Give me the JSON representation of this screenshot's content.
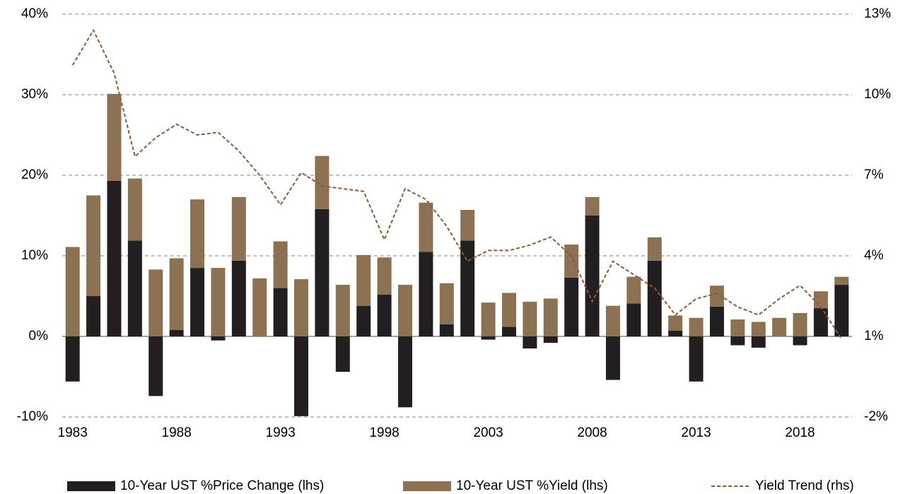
{
  "chart_data": {
    "type": "bar",
    "stacked": true,
    "categories": [
      "1983",
      null,
      null,
      null,
      null,
      "1988",
      null,
      null,
      null,
      null,
      "1993",
      null,
      null,
      null,
      null,
      "1998",
      null,
      null,
      null,
      null,
      "2003",
      null,
      null,
      null,
      null,
      "2008",
      null,
      null,
      null,
      null,
      "2013",
      null,
      null,
      null,
      null,
      "2018",
      null,
      null
    ],
    "series": [
      {
        "name": "10-Year UST %Price Change (lhs)",
        "color": "#231f20",
        "values": [
          -5.6,
          5.0,
          19.3,
          11.9,
          -7.4,
          0.8,
          8.5,
          -0.5,
          9.4,
          0,
          6.0,
          -9.9,
          15.8,
          -4.4,
          3.8,
          5.2,
          -8.8,
          10.5,
          1.5,
          11.9,
          -0.4,
          1.2,
          -1.5,
          -0.8,
          7.3,
          15.0,
          -5.4,
          4.1,
          9.4,
          0.7,
          -5.6,
          3.7,
          -1.1,
          -1.4,
          0,
          -1.1,
          3.5,
          6.4
        ]
      },
      {
        "name": "10-Year UST %Yield (lhs)",
        "color": "#8c7152",
        "values": [
          11.1,
          12.5,
          10.8,
          7.7,
          8.3,
          8.9,
          8.5,
          8.5,
          7.9,
          7.2,
          5.8,
          7.1,
          6.6,
          6.4,
          6.3,
          4.6,
          6.4,
          6.1,
          5.1,
          3.8,
          4.2,
          4.2,
          4.3,
          4.7,
          4.1,
          2.3,
          3.8,
          3.3,
          2.9,
          1.9,
          2.3,
          2.6,
          2.1,
          1.8,
          2.3,
          2.9,
          2.1,
          1.0
        ]
      },
      {
        "name": "Yield Trend (rhs)",
        "type": "line",
        "axis": "y2",
        "color": "#8b5a3c",
        "dashed": true,
        "values": [
          11.1,
          12.4,
          10.8,
          7.7,
          8.4,
          8.9,
          8.5,
          8.6,
          7.9,
          7.0,
          5.9,
          7.1,
          6.6,
          6.5,
          6.4,
          4.6,
          6.5,
          6.1,
          5.1,
          3.8,
          4.2,
          4.2,
          4.4,
          4.7,
          4.0,
          2.3,
          3.8,
          3.3,
          2.8,
          1.8,
          2.4,
          2.6,
          2.1,
          1.8,
          2.4,
          2.9,
          2.1,
          0.9
        ]
      }
    ],
    "ylim": [
      -10,
      40
    ],
    "yticks": [
      {
        "value": -10,
        "label": "-10%"
      },
      {
        "value": 0,
        "label": "0%"
      },
      {
        "value": 10,
        "label": "10%"
      },
      {
        "value": 20,
        "label": "20%"
      },
      {
        "value": 30,
        "label": "30%"
      },
      {
        "value": 40,
        "label": "40%"
      }
    ],
    "y2lim": [
      -2,
      13
    ],
    "y2ticks": [
      {
        "value": -2,
        "label": "-2%"
      },
      {
        "value": 1,
        "label": "1%"
      },
      {
        "value": 4,
        "label": "4%"
      },
      {
        "value": 7,
        "label": "7%"
      },
      {
        "value": 10,
        "label": "10%"
      },
      {
        "value": 13,
        "label": "13%"
      }
    ],
    "grid": true,
    "legend": "bottom"
  }
}
